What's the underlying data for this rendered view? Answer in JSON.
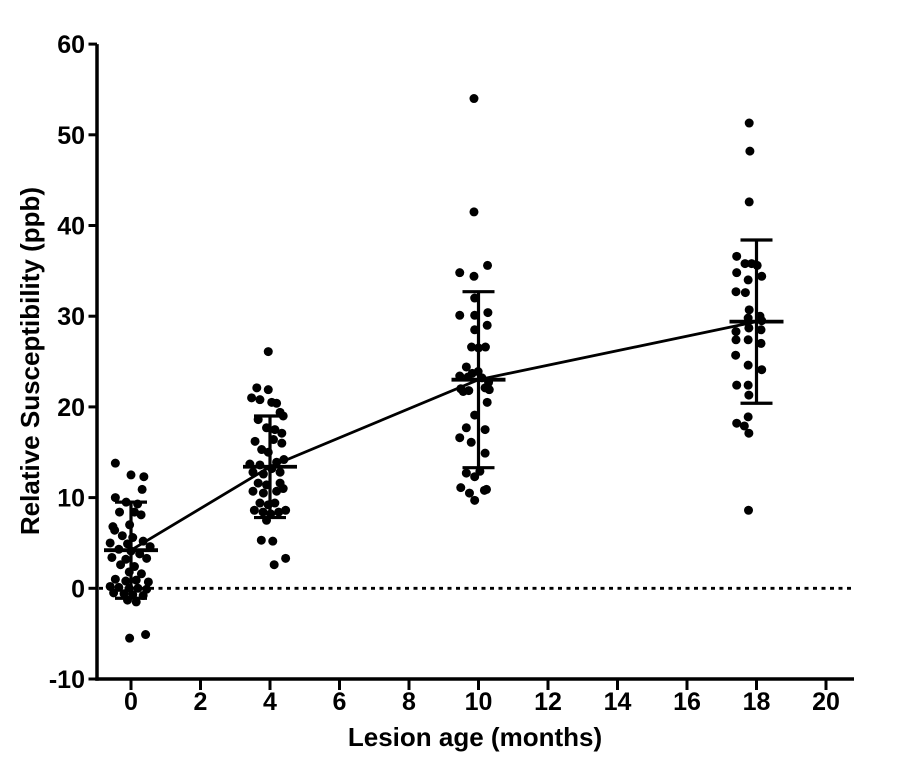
{
  "figure_title": "",
  "colors": {
    "foreground": "#000000",
    "background": "#ffffff"
  },
  "chart_data": {
    "type": "scatter",
    "title": "",
    "xlabel": "Lesion age (months)",
    "ylabel": "Relative Susceptibility (ppb)",
    "xlim": [
      -1.1,
      20.8
    ],
    "ylim": [
      -10,
      60
    ],
    "grid": false,
    "legend": "none",
    "x_axis": {
      "ticks": [
        0,
        2,
        4,
        6,
        8,
        10,
        12,
        14,
        16,
        18,
        20
      ],
      "tick_labels": [
        "0",
        "2",
        "4",
        "6",
        "8",
        "10",
        "12",
        "14",
        "16",
        "18",
        "20"
      ]
    },
    "y_axis": {
      "ticks": [
        -10,
        0,
        10,
        20,
        30,
        40,
        50,
        60
      ],
      "tick_labels": [
        "-10",
        "0",
        "10",
        "20",
        "30",
        "40",
        "50",
        "60"
      ]
    },
    "baseline": {
      "y": 0,
      "style": "dotted"
    },
    "trend_line": {
      "through": "group_means",
      "points_x": [
        0,
        4,
        10,
        18
      ],
      "points_y": [
        4.2,
        13.4,
        23.0,
        29.4
      ]
    },
    "error_bars": "mean ± SD, horizontal mean bar with caps",
    "groups": [
      {
        "x": 0,
        "mean": 4.2,
        "err_low": -1.1,
        "err_high": 9.5,
        "points": [
          [
            -0.45,
            13.8
          ],
          [
            0.0,
            12.5
          ],
          [
            0.37,
            12.3
          ],
          [
            0.32,
            10.9
          ],
          [
            -0.45,
            10.0
          ],
          [
            -0.14,
            9.5
          ],
          [
            0.19,
            9.3
          ],
          [
            -0.33,
            8.4
          ],
          [
            0.1,
            8.4
          ],
          [
            0.29,
            8.1
          ],
          [
            -0.04,
            7.0
          ],
          [
            -0.52,
            6.8
          ],
          [
            -0.47,
            6.4
          ],
          [
            -0.25,
            5.8
          ],
          [
            0.05,
            5.6
          ],
          [
            0.35,
            5.2
          ],
          [
            -0.6,
            5.0
          ],
          [
            -0.1,
            4.9
          ],
          [
            0.55,
            4.6
          ],
          [
            -0.35,
            4.3
          ],
          [
            0.0,
            4.1
          ],
          [
            0.25,
            3.8
          ],
          [
            -0.55,
            3.4
          ],
          [
            0.45,
            3.3
          ],
          [
            -0.15,
            3.2
          ],
          [
            -0.3,
            2.6
          ],
          [
            0.1,
            2.4
          ],
          [
            -0.05,
            1.8
          ],
          [
            0.3,
            1.6
          ],
          [
            -0.45,
            1.0
          ],
          [
            0.15,
            0.9
          ],
          [
            -0.15,
            0.8
          ],
          [
            0.5,
            0.7
          ],
          [
            -0.6,
            0.2
          ],
          [
            -0.35,
            0.1
          ],
          [
            -0.05,
            0.0
          ],
          [
            0.2,
            0.0
          ],
          [
            0.45,
            -0.1
          ],
          [
            -0.5,
            -0.5
          ],
          [
            -0.2,
            -0.6
          ],
          [
            0.05,
            -0.7
          ],
          [
            0.35,
            -0.8
          ],
          [
            -0.1,
            -1.3
          ],
          [
            0.15,
            -1.5
          ],
          [
            -0.04,
            -5.5
          ],
          [
            0.42,
            -5.1
          ]
        ]
      },
      {
        "x": 4,
        "mean": 13.4,
        "err_low": 7.8,
        "err_high": 19.0,
        "points": [
          [
            -0.05,
            26.1
          ],
          [
            -0.38,
            22.1
          ],
          [
            -0.05,
            21.9
          ],
          [
            -0.53,
            21.0
          ],
          [
            -0.29,
            20.8
          ],
          [
            0.05,
            20.5
          ],
          [
            0.19,
            20.4
          ],
          [
            0.29,
            19.4
          ],
          [
            0.38,
            19.0
          ],
          [
            -0.34,
            18.6
          ],
          [
            -0.1,
            17.7
          ],
          [
            0.14,
            17.5
          ],
          [
            0.34,
            17.1
          ],
          [
            0.1,
            16.4
          ],
          [
            -0.43,
            16.2
          ],
          [
            0.34,
            16.0
          ],
          [
            -0.24,
            15.3
          ],
          [
            -0.05,
            15.0
          ],
          [
            0.4,
            14.2
          ],
          [
            0.19,
            13.9
          ],
          [
            -0.58,
            13.7
          ],
          [
            -0.29,
            13.6
          ],
          [
            0.05,
            13.2
          ],
          [
            -0.49,
            12.8
          ],
          [
            0.29,
            12.8
          ],
          [
            -0.19,
            12.6
          ],
          [
            -0.34,
            11.6
          ],
          [
            0.29,
            11.6
          ],
          [
            -0.1,
            11.4
          ],
          [
            0.38,
            11.0
          ],
          [
            -0.49,
            10.7
          ],
          [
            0.19,
            10.7
          ],
          [
            -0.19,
            10.5
          ],
          [
            -0.29,
            9.4
          ],
          [
            0.14,
            9.4
          ],
          [
            -0.05,
            9.2
          ],
          [
            -0.45,
            8.6
          ],
          [
            0.45,
            8.6
          ],
          [
            -0.2,
            8.4
          ],
          [
            0.25,
            8.4
          ],
          [
            0.02,
            8.2
          ],
          [
            -0.1,
            7.5
          ],
          [
            -0.25,
            5.3
          ],
          [
            0.08,
            5.2
          ],
          [
            0.45,
            3.3
          ],
          [
            0.12,
            2.6
          ]
        ]
      },
      {
        "x": 10,
        "mean": 23.0,
        "err_low": 13.3,
        "err_high": 32.7,
        "points": [
          [
            -0.13,
            54.0
          ],
          [
            -0.13,
            41.5
          ],
          [
            0.26,
            35.6
          ],
          [
            -0.54,
            34.8
          ],
          [
            -0.13,
            34.4
          ],
          [
            -0.11,
            32.0
          ],
          [
            0.27,
            30.4
          ],
          [
            -0.54,
            30.1
          ],
          [
            -0.11,
            30.1
          ],
          [
            0.25,
            29.0
          ],
          [
            -0.11,
            28.5
          ],
          [
            -0.2,
            26.6
          ],
          [
            0.2,
            26.6
          ],
          [
            0.0,
            26.5
          ],
          [
            -0.35,
            24.4
          ],
          [
            -0.01,
            23.9
          ],
          [
            -0.18,
            23.7
          ],
          [
            -0.54,
            23.4
          ],
          [
            -0.3,
            23.3
          ],
          [
            0.1,
            23.2
          ],
          [
            0.29,
            22.7
          ],
          [
            0.19,
            22.1
          ],
          [
            -0.51,
            22.0
          ],
          [
            0.31,
            21.9
          ],
          [
            -0.28,
            21.8
          ],
          [
            -0.44,
            21.7
          ],
          [
            0.25,
            20.5
          ],
          [
            -0.11,
            19.1
          ],
          [
            -0.35,
            17.7
          ],
          [
            0.19,
            17.5
          ],
          [
            -0.54,
            16.6
          ],
          [
            -0.21,
            16.1
          ],
          [
            0.19,
            14.9
          ],
          [
            0.04,
            12.9
          ],
          [
            -0.35,
            12.7
          ],
          [
            -0.11,
            12.3
          ],
          [
            -0.51,
            11.1
          ],
          [
            0.23,
            10.9
          ],
          [
            0.17,
            10.8
          ],
          [
            -0.26,
            10.5
          ],
          [
            -0.11,
            9.7
          ]
        ]
      },
      {
        "x": 18,
        "mean": 29.4,
        "err_low": 20.4,
        "err_high": 38.4,
        "points": [
          [
            -0.21,
            51.3
          ],
          [
            -0.19,
            48.2
          ],
          [
            -0.21,
            42.6
          ],
          [
            -0.57,
            36.6
          ],
          [
            -0.33,
            35.8
          ],
          [
            -0.14,
            35.8
          ],
          [
            0.02,
            35.6
          ],
          [
            -0.57,
            34.8
          ],
          [
            0.15,
            34.4
          ],
          [
            -0.24,
            34.0
          ],
          [
            -0.59,
            32.7
          ],
          [
            -0.32,
            32.6
          ],
          [
            -0.21,
            30.7
          ],
          [
            0.1,
            30.0
          ],
          [
            -0.24,
            29.8
          ],
          [
            0.15,
            29.5
          ],
          [
            -0.22,
            28.7
          ],
          [
            0.13,
            28.5
          ],
          [
            -0.59,
            28.3
          ],
          [
            -0.59,
            27.4
          ],
          [
            -0.24,
            27.4
          ],
          [
            0.13,
            27.0
          ],
          [
            -0.6,
            25.7
          ],
          [
            -0.24,
            24.6
          ],
          [
            0.15,
            24.1
          ],
          [
            -0.57,
            22.4
          ],
          [
            -0.24,
            22.4
          ],
          [
            -0.22,
            21.3
          ],
          [
            -0.24,
            18.9
          ],
          [
            -0.57,
            18.2
          ],
          [
            -0.35,
            17.9
          ],
          [
            -0.22,
            17.1
          ],
          [
            -0.23,
            8.6
          ]
        ]
      }
    ]
  }
}
